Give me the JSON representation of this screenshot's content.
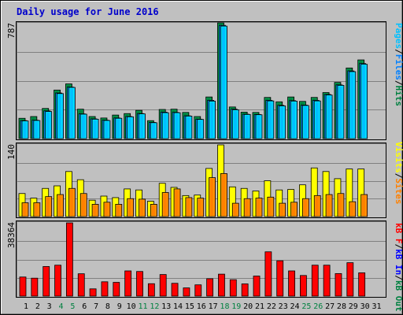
{
  "title": "Daily usage for June 2016",
  "colors": {
    "background": "#c0c0c0",
    "page": "#ffffff",
    "title": "#0000cc",
    "pages": "#00c0ff",
    "files": "#0080ff",
    "hits": "#008040",
    "visits": "#ffff00",
    "sites": "#ff8000",
    "kb_out": "#008040",
    "kb_in": "#0000ff",
    "kb_f": "#ff0000",
    "weekend_label": "#008040",
    "weekday_label": "#000000"
  },
  "chart_data": [
    {
      "type": "bar",
      "panel": "top",
      "y_max_label": "787",
      "ylim": [
        0,
        787
      ],
      "legend": {
        "pages": "Pages",
        "files": "Files",
        "hits": "Hits",
        "sep": "/"
      },
      "x": [
        1,
        2,
        3,
        4,
        5,
        6,
        7,
        8,
        9,
        10,
        11,
        12,
        13,
        14,
        15,
        16,
        17,
        18,
        19,
        20,
        21,
        22,
        23,
        24,
        25,
        26,
        27,
        28,
        29,
        30
      ],
      "series": [
        {
          "name": "Hits",
          "values": [
            138,
            150,
            205,
            330,
            372,
            200,
            150,
            140,
            160,
            170,
            192,
            122,
            198,
            200,
            178,
            150,
            283,
            787,
            215,
            180,
            178,
            280,
            250,
            283,
            253,
            280,
            313,
            382,
            480,
            535
          ]
        },
        {
          "name": "Files",
          "values": [
            122,
            125,
            188,
            310,
            350,
            168,
            134,
            125,
            140,
            150,
            170,
            110,
            180,
            178,
            155,
            132,
            260,
            770,
            200,
            166,
            164,
            260,
            226,
            258,
            228,
            260,
            300,
            365,
            460,
            510
          ]
        },
        {
          "name": "Pages",
          "values": [
            120,
            123,
            184,
            306,
            348,
            166,
            132,
            123,
            138,
            148,
            168,
            108,
            176,
            176,
            153,
            130,
            255,
            765,
            196,
            164,
            162,
            256,
            222,
            255,
            225,
            256,
            296,
            362,
            455,
            505
          ]
        }
      ]
    },
    {
      "type": "bar",
      "panel": "middle",
      "y_max_label": "140",
      "ylim": [
        0,
        140
      ],
      "legend": {
        "visits": "Visits",
        "sites": "Sites",
        "sep": "/"
      },
      "x": [
        1,
        2,
        3,
        4,
        5,
        6,
        7,
        8,
        9,
        10,
        11,
        12,
        13,
        14,
        15,
        16,
        17,
        18,
        19,
        20,
        21,
        22,
        23,
        24,
        25,
        26,
        27,
        28,
        29,
        30
      ],
      "series": [
        {
          "name": "Visits",
          "values": [
            45,
            36,
            55,
            60,
            88,
            72,
            32,
            40,
            37,
            54,
            52,
            30,
            65,
            57,
            41,
            42,
            94,
            140,
            58,
            55,
            50,
            70,
            52,
            53,
            62,
            95,
            88,
            74,
            93,
            93
          ]
        },
        {
          "name": "Sites",
          "values": [
            27,
            27,
            39,
            43,
            55,
            45,
            24,
            28,
            24,
            35,
            34,
            24,
            47,
            54,
            37,
            36,
            76,
            84,
            26,
            35,
            36,
            38,
            26,
            28,
            35,
            41,
            43,
            45,
            29,
            43
          ]
        }
      ]
    },
    {
      "type": "bar",
      "panel": "bottom",
      "y_max_label": "38364",
      "ylim": [
        0,
        38364
      ],
      "legend": {
        "kb_f": "kB F",
        "kb_in": "kB In",
        "kb_out": "kB Out",
        "sep": "/"
      },
      "x": [
        1,
        2,
        3,
        4,
        5,
        6,
        7,
        8,
        9,
        10,
        11,
        12,
        13,
        14,
        15,
        16,
        17,
        18,
        19,
        20,
        21,
        22,
        23,
        24,
        25,
        26,
        27,
        28,
        29,
        30
      ],
      "series": [
        {
          "name": "kB F",
          "values": [
            10000,
            9400,
            15500,
            16200,
            38364,
            11700,
            3800,
            7500,
            7200,
            13200,
            12900,
            6500,
            11300,
            6700,
            4300,
            5900,
            9100,
            11500,
            8600,
            6400,
            10500,
            23200,
            18500,
            13200,
            10800,
            16200,
            16200,
            11800,
            17500,
            12200
          ]
        }
      ]
    }
  ],
  "x_labels": [
    {
      "label": "1",
      "weekend": false
    },
    {
      "label": "2",
      "weekend": false
    },
    {
      "label": "3",
      "weekend": false
    },
    {
      "label": "4",
      "weekend": true
    },
    {
      "label": "5",
      "weekend": true
    },
    {
      "label": "6",
      "weekend": false
    },
    {
      "label": "7",
      "weekend": false
    },
    {
      "label": "8",
      "weekend": false
    },
    {
      "label": "9",
      "weekend": false
    },
    {
      "label": "10",
      "weekend": false
    },
    {
      "label": "11",
      "weekend": true
    },
    {
      "label": "12",
      "weekend": true
    },
    {
      "label": "13",
      "weekend": false
    },
    {
      "label": "14",
      "weekend": false
    },
    {
      "label": "15",
      "weekend": false
    },
    {
      "label": "16",
      "weekend": false
    },
    {
      "label": "17",
      "weekend": false
    },
    {
      "label": "18",
      "weekend": true
    },
    {
      "label": "19",
      "weekend": true
    },
    {
      "label": "20",
      "weekend": false
    },
    {
      "label": "21",
      "weekend": false
    },
    {
      "label": "22",
      "weekend": false
    },
    {
      "label": "23",
      "weekend": false
    },
    {
      "label": "24",
      "weekend": false
    },
    {
      "label": "25",
      "weekend": true
    },
    {
      "label": "26",
      "weekend": true
    },
    {
      "label": "27",
      "weekend": false
    },
    {
      "label": "28",
      "weekend": false
    },
    {
      "label": "29",
      "weekend": false
    },
    {
      "label": "30",
      "weekend": false
    },
    {
      "label": "31",
      "weekend": false
    }
  ]
}
